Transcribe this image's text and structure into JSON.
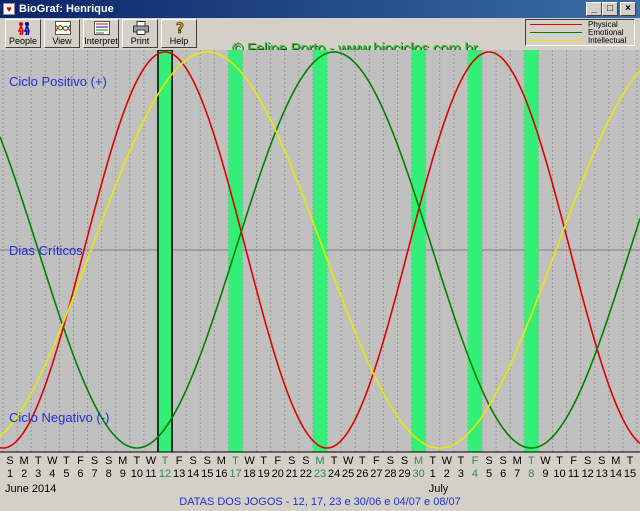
{
  "window": {
    "title": "BioGraf: Henrique",
    "minimize": "_",
    "maximize": "□",
    "close": "×"
  },
  "toolbar": [
    {
      "label": "People",
      "icon": "people-icon"
    },
    {
      "label": "View",
      "icon": "view-icon"
    },
    {
      "label": "Interpret",
      "icon": "interpret-icon"
    },
    {
      "label": "Print",
      "icon": "print-icon"
    },
    {
      "label": "Help",
      "icon": "help-icon"
    }
  ],
  "watermark": "© Felipe Porto - www.biociclos.com.br",
  "legend": [
    {
      "name": "Physical",
      "color": "#e00000"
    },
    {
      "name": "Emotional",
      "color": "#008000"
    },
    {
      "name": "Intellectual",
      "color": "#e8e800"
    }
  ],
  "labels": {
    "positive": "Ciclo Positivo (+)",
    "critical": "Dias Críticos",
    "negative": "Ciclo Negativo (-)"
  },
  "months": [
    "June 2014",
    "July"
  ],
  "footer": "DATAS DOS JOGOS - 12, 17, 23 e 30/06 e 04/07 e 08/07",
  "chart_data": {
    "type": "line",
    "days": [
      {
        "wd": "S",
        "d": "1"
      },
      {
        "wd": "M",
        "d": "2"
      },
      {
        "wd": "T",
        "d": "3"
      },
      {
        "wd": "W",
        "d": "4"
      },
      {
        "wd": "T",
        "d": "5"
      },
      {
        "wd": "F",
        "d": "6"
      },
      {
        "wd": "S",
        "d": "7"
      },
      {
        "wd": "S",
        "d": "8"
      },
      {
        "wd": "M",
        "d": "9"
      },
      {
        "wd": "T",
        "d": "10"
      },
      {
        "wd": "W",
        "d": "11"
      },
      {
        "wd": "T",
        "d": "12"
      },
      {
        "wd": "F",
        "d": "13"
      },
      {
        "wd": "S",
        "d": "14"
      },
      {
        "wd": "S",
        "d": "15"
      },
      {
        "wd": "M",
        "d": "16"
      },
      {
        "wd": "T",
        "d": "17"
      },
      {
        "wd": "W",
        "d": "18"
      },
      {
        "wd": "T",
        "d": "19"
      },
      {
        "wd": "F",
        "d": "20"
      },
      {
        "wd": "S",
        "d": "21"
      },
      {
        "wd": "S",
        "d": "22"
      },
      {
        "wd": "M",
        "d": "23"
      },
      {
        "wd": "T",
        "d": "24"
      },
      {
        "wd": "W",
        "d": "25"
      },
      {
        "wd": "T",
        "d": "26"
      },
      {
        "wd": "F",
        "d": "27"
      },
      {
        "wd": "S",
        "d": "28"
      },
      {
        "wd": "S",
        "d": "29"
      },
      {
        "wd": "M",
        "d": "30"
      },
      {
        "wd": "T",
        "d": "1"
      },
      {
        "wd": "W",
        "d": "2"
      },
      {
        "wd": "T",
        "d": "3"
      },
      {
        "wd": "F",
        "d": "4"
      },
      {
        "wd": "S",
        "d": "5"
      },
      {
        "wd": "S",
        "d": "6"
      },
      {
        "wd": "M",
        "d": "7"
      },
      {
        "wd": "T",
        "d": "8"
      },
      {
        "wd": "W",
        "d": "9"
      },
      {
        "wd": "T",
        "d": "10"
      },
      {
        "wd": "F",
        "d": "11"
      },
      {
        "wd": "S",
        "d": "12"
      },
      {
        "wd": "S",
        "d": "13"
      },
      {
        "wd": "M",
        "d": "14"
      },
      {
        "wd": "T",
        "d": "15"
      }
    ],
    "highlight_days": [
      12,
      17,
      23,
      30,
      34,
      38
    ],
    "selected_day": 12,
    "series": [
      {
        "name": "Physical",
        "color": "#e00000",
        "period_days": 23,
        "peak_day": 12
      },
      {
        "name": "Emotional",
        "color": "#008000",
        "period_days": 28,
        "peak_day": 24
      },
      {
        "name": "Intellectual",
        "color": "#e8e800",
        "period_days": 33,
        "peak_day": 15
      }
    ],
    "ylim": [
      -1,
      1
    ],
    "grid": "vertical dotted per day, horizontal midline"
  }
}
